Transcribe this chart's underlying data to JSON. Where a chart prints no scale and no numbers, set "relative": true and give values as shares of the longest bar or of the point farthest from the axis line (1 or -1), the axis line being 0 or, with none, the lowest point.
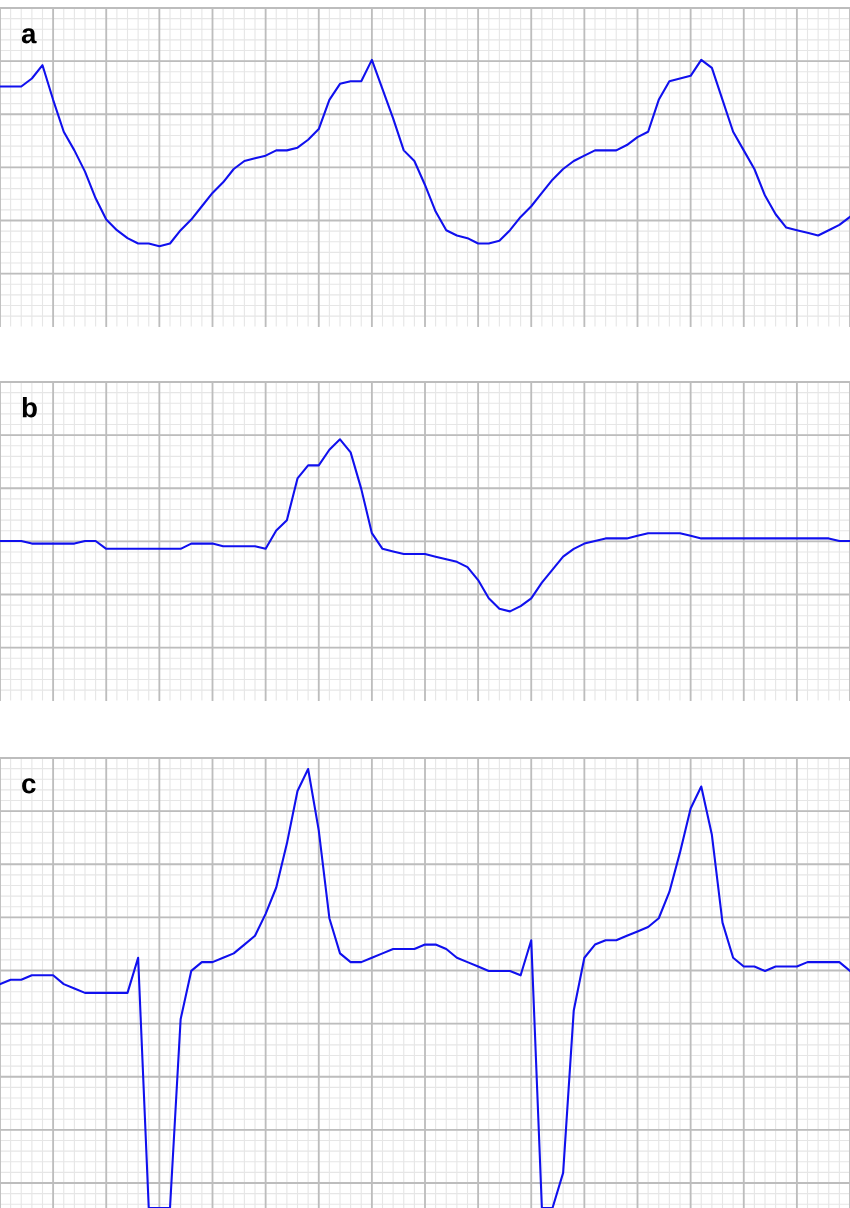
{
  "chart_data": [
    {
      "type": "line",
      "title": "a",
      "relative": true,
      "grid": true,
      "categories": [
        null,
        null,
        null,
        null,
        null,
        null,
        null,
        null,
        null,
        null,
        null,
        null,
        null,
        null,
        null,
        null,
        null,
        null,
        null,
        null,
        null,
        null,
        null,
        null,
        null,
        null,
        null,
        null,
        null,
        null,
        null,
        null,
        null,
        null,
        null,
        null,
        null,
        null,
        null,
        null,
        null,
        null,
        null,
        null,
        null,
        null,
        null,
        null,
        null,
        null,
        null,
        null,
        null,
        null,
        null,
        null,
        null,
        null,
        null,
        null,
        null,
        null,
        null,
        null,
        null,
        null,
        null,
        null,
        null,
        null,
        null,
        null,
        null,
        null,
        null,
        null,
        null,
        null,
        null,
        null,
        null
      ],
      "series": [
        {
          "color": "#1010ee",
          "values": [
            0.9,
            0.9,
            0.9,
            0.93,
            0.98,
            0.85,
            0.73,
            0.66,
            0.58,
            0.48,
            0.4,
            0.36,
            0.33,
            0.31,
            0.31,
            0.3,
            0.31,
            0.36,
            0.4,
            0.45,
            0.5,
            0.54,
            0.59,
            0.62,
            0.63,
            0.64,
            0.66,
            0.66,
            0.67,
            0.7,
            0.74,
            0.85,
            0.91,
            0.92,
            0.92,
            1,
            0.89,
            0.78,
            0.66,
            0.62,
            0.53,
            0.43,
            0.36,
            0.34,
            0.33,
            0.31,
            0.31,
            0.32,
            0.36,
            0.41,
            0.45,
            0.5,
            0.55,
            0.59,
            0.62,
            0.64,
            0.66,
            0.66,
            0.66,
            0.68,
            0.71,
            0.73,
            0.85,
            0.92,
            0.93,
            0.94,
            1,
            0.97,
            0.85,
            0.73,
            0.66,
            0.59,
            0.49,
            0.42,
            0.37,
            0.36,
            0.35,
            0.34,
            0.36,
            0.38,
            0.41
          ]
        }
      ]
    },
    {
      "type": "line",
      "title": "b",
      "relative": true,
      "grid": true,
      "categories": [
        null,
        null,
        null,
        null,
        null,
        null,
        null,
        null,
        null,
        null,
        null,
        null,
        null,
        null,
        null,
        null,
        null,
        null,
        null,
        null,
        null,
        null,
        null,
        null,
        null,
        null,
        null,
        null,
        null,
        null,
        null,
        null,
        null,
        null,
        null,
        null,
        null,
        null,
        null,
        null,
        null,
        null,
        null,
        null,
        null,
        null,
        null,
        null,
        null,
        null,
        null,
        null,
        null,
        null,
        null,
        null,
        null,
        null,
        null,
        null,
        null,
        null,
        null,
        null,
        null,
        null,
        null,
        null,
        null,
        null,
        null,
        null,
        null,
        null,
        null,
        null,
        null,
        null,
        null,
        null,
        null
      ],
      "series": [
        {
          "color": "#1010ee",
          "values": [
            0.61,
            0.61,
            0.61,
            0.6,
            0.6,
            0.6,
            0.6,
            0.6,
            0.61,
            0.61,
            0.58,
            0.58,
            0.58,
            0.58,
            0.58,
            0.58,
            0.58,
            0.58,
            0.6,
            0.6,
            0.6,
            0.59,
            0.59,
            0.59,
            0.59,
            0.58,
            0.65,
            0.69,
            0.85,
            0.9,
            0.9,
            0.96,
            1,
            0.95,
            0.81,
            0.64,
            0.58,
            0.57,
            0.56,
            0.56,
            0.56,
            0.55,
            0.54,
            0.53,
            0.51,
            0.46,
            0.39,
            0.35,
            0.34,
            0.36,
            0.39,
            0.45,
            0.5,
            0.55,
            0.58,
            0.6,
            0.61,
            0.62,
            0.62,
            0.62,
            0.63,
            0.64,
            0.64,
            0.64,
            0.64,
            0.63,
            0.62,
            0.62,
            0.62,
            0.62,
            0.62,
            0.62,
            0.62,
            0.62,
            0.62,
            0.62,
            0.62,
            0.62,
            0.62,
            0.61,
            0.61
          ]
        }
      ]
    },
    {
      "type": "line",
      "title": "c",
      "relative": true,
      "grid": true,
      "categories": [
        null,
        null,
        null,
        null,
        null,
        null,
        null,
        null,
        null,
        null,
        null,
        null,
        null,
        null,
        null,
        null,
        null,
        null,
        null,
        null,
        null,
        null,
        null,
        null,
        null,
        null,
        null,
        null,
        null,
        null,
        null,
        null,
        null,
        null,
        null,
        null,
        null,
        null,
        null,
        null,
        null,
        null,
        null,
        null,
        null,
        null,
        null,
        null,
        null,
        null,
        null,
        null,
        null,
        null,
        null,
        null,
        null,
        null,
        null,
        null,
        null,
        null,
        null,
        null,
        null,
        null,
        null,
        null,
        null,
        null,
        null,
        null,
        null,
        null,
        null,
        null,
        null,
        null,
        null,
        null,
        null
      ],
      "series": [
        {
          "color": "#1010ee",
          "values": [
            0.51,
            0.52,
            0.52,
            0.53,
            0.53,
            0.53,
            0.51,
            0.5,
            0.49,
            0.49,
            0.49,
            0.49,
            0.49,
            0.57,
            0,
            0,
            0,
            0.43,
            0.54,
            0.56,
            0.56,
            0.57,
            0.58,
            0.6,
            0.62,
            0.67,
            0.73,
            0.83,
            0.95,
            1,
            0.86,
            0.66,
            0.58,
            0.56,
            0.56,
            0.57,
            0.58,
            0.59,
            0.59,
            0.59,
            0.6,
            0.6,
            0.59,
            0.57,
            0.56,
            0.55,
            0.54,
            0.54,
            0.54,
            0.53,
            0.61,
            0,
            0,
            0.08,
            0.45,
            0.57,
            0.6,
            0.61,
            0.61,
            0.62,
            0.63,
            0.64,
            0.66,
            0.72,
            0.81,
            0.91,
            0.96,
            0.85,
            0.65,
            0.57,
            0.55,
            0.55,
            0.54,
            0.55,
            0.55,
            0.55,
            0.56,
            0.56,
            0.56,
            0.56,
            0.54
          ]
        }
      ]
    }
  ]
}
